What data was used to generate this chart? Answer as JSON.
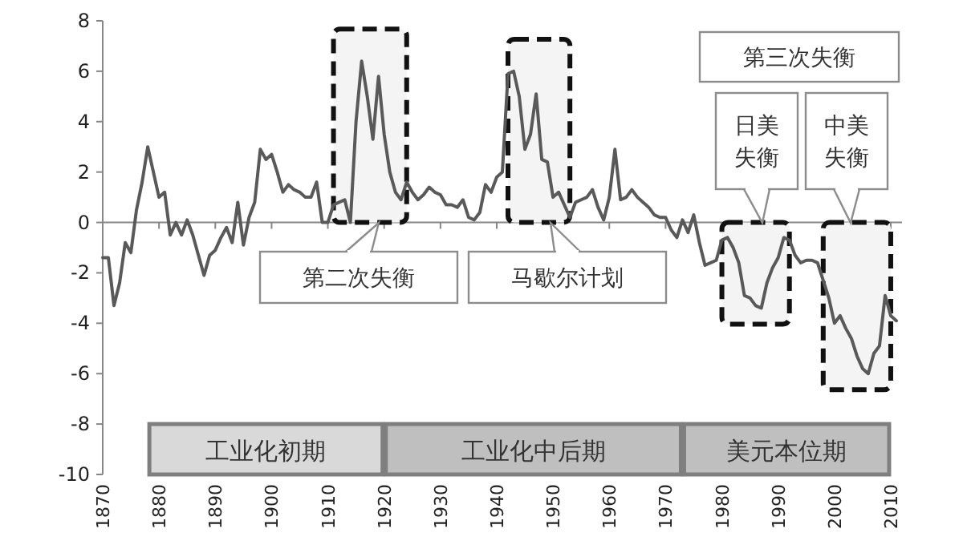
{
  "chart_data": {
    "type": "line",
    "x": [
      1870,
      1871,
      1872,
      1873,
      1874,
      1875,
      1876,
      1877,
      1878,
      1879,
      1880,
      1881,
      1882,
      1883,
      1884,
      1885,
      1886,
      1887,
      1888,
      1889,
      1890,
      1891,
      1892,
      1893,
      1894,
      1895,
      1896,
      1897,
      1898,
      1899,
      1900,
      1901,
      1902,
      1903,
      1904,
      1905,
      1906,
      1907,
      1908,
      1909,
      1910,
      1911,
      1912,
      1913,
      1914,
      1915,
      1916,
      1917,
      1918,
      1919,
      1920,
      1921,
      1922,
      1923,
      1924,
      1925,
      1926,
      1927,
      1928,
      1929,
      1930,
      1931,
      1932,
      1933,
      1934,
      1935,
      1936,
      1937,
      1938,
      1939,
      1940,
      1941,
      1942,
      1943,
      1944,
      1945,
      1946,
      1947,
      1948,
      1949,
      1950,
      1951,
      1952,
      1953,
      1954,
      1955,
      1956,
      1957,
      1958,
      1959,
      1960,
      1961,
      1962,
      1963,
      1964,
      1965,
      1966,
      1967,
      1968,
      1969,
      1970,
      1971,
      1972,
      1973,
      1974,
      1975,
      1976,
      1977,
      1978,
      1979,
      1980,
      1981,
      1982,
      1983,
      1984,
      1985,
      1986,
      1987,
      1988,
      1989,
      1990,
      1991,
      1992,
      1993,
      1994,
      1995,
      1996,
      1997,
      1998,
      1999,
      2000,
      2001,
      2002,
      2003,
      2004,
      2005,
      2006,
      2007,
      2008,
      2009,
      2010,
      2011
    ],
    "series": [
      {
        "color": "#595959",
        "values": [
          -1.4,
          -1.4,
          -3.3,
          -2.4,
          -0.8,
          -1.2,
          0.5,
          1.6,
          3.0,
          2.0,
          1.0,
          1.2,
          -0.5,
          0.0,
          -0.5,
          0.1,
          -0.5,
          -1.3,
          -2.1,
          -1.3,
          -1.1,
          -0.6,
          -0.2,
          -0.8,
          0.8,
          -0.9,
          0.2,
          0.8,
          2.9,
          2.5,
          2.7,
          2.0,
          1.2,
          1.5,
          1.3,
          1.2,
          1.0,
          1.0,
          1.6,
          0.0,
          0.0,
          0.7,
          0.8,
          0.9,
          0.0,
          4.0,
          6.4,
          5.0,
          3.3,
          5.8,
          3.5,
          2.0,
          1.2,
          0.9,
          1.6,
          1.2,
          0.9,
          1.1,
          1.4,
          1.2,
          1.1,
          0.7,
          0.7,
          0.6,
          0.9,
          0.2,
          0.1,
          0.4,
          1.5,
          1.2,
          1.8,
          2.0,
          5.9,
          6.0,
          5.0,
          2.9,
          3.5,
          5.1,
          2.5,
          2.4,
          1.0,
          1.2,
          0.7,
          0.2,
          0.8,
          0.9,
          1.0,
          1.3,
          0.6,
          0.1,
          1.0,
          2.9,
          0.9,
          1.0,
          1.3,
          1.0,
          0.8,
          0.6,
          0.3,
          0.2,
          0.2,
          -0.3,
          -0.6,
          0.1,
          -0.4,
          0.3,
          -0.8,
          -1.7,
          -1.6,
          -1.5,
          -0.7,
          -0.6,
          -1.0,
          -1.6,
          -2.9,
          -3.0,
          -3.3,
          -3.4,
          -2.4,
          -1.8,
          -1.4,
          -0.6,
          -0.7,
          -1.3,
          -1.6,
          -1.5,
          -1.5,
          -1.6,
          -2.3,
          -3.0,
          -4.0,
          -3.7,
          -4.2,
          -4.6,
          -5.3,
          -5.8,
          -6.0,
          -5.2,
          -4.9,
          -2.9,
          -3.7,
          -3.9
        ]
      }
    ],
    "xlim": [
      1870,
      2012
    ],
    "xticks": [
      1870,
      1880,
      1890,
      1900,
      1910,
      1920,
      1930,
      1940,
      1950,
      1960,
      1970,
      1980,
      1990,
      2000,
      2010
    ],
    "ylim": [
      -10,
      8
    ],
    "yticks": [
      -10,
      -8,
      -6,
      -4,
      -2,
      0,
      2,
      4,
      6,
      8
    ],
    "bands": [
      {
        "axis": "x",
        "from": 1878,
        "to": 1920,
        "label": "工业化初期",
        "color": "#d9d9d9"
      },
      {
        "axis": "x",
        "from": 1920,
        "to": 1973,
        "label": "工业化中后期",
        "color": "#bfbfbf"
      },
      {
        "axis": "x",
        "from": 1973,
        "to": 2010,
        "label": "美元本位期",
        "color": "#bfbfbf"
      },
      {
        "axis": "x",
        "from": 1911,
        "to": 1924,
        "color": "#f4f4f4"
      },
      {
        "axis": "x",
        "from": 1942,
        "to": 1953,
        "color": "#f4f4f4"
      },
      {
        "axis": "x",
        "from": 1980,
        "to": 1992,
        "color": "#f4f4f4"
      },
      {
        "axis": "x",
        "from": 1998,
        "to": 2010,
        "color": "#f4f4f4"
      }
    ],
    "annotations": [
      "第二次失衡",
      "马歇尔计划",
      "第三次失衡",
      "日美失衡",
      "中美失衡"
    ]
  }
}
